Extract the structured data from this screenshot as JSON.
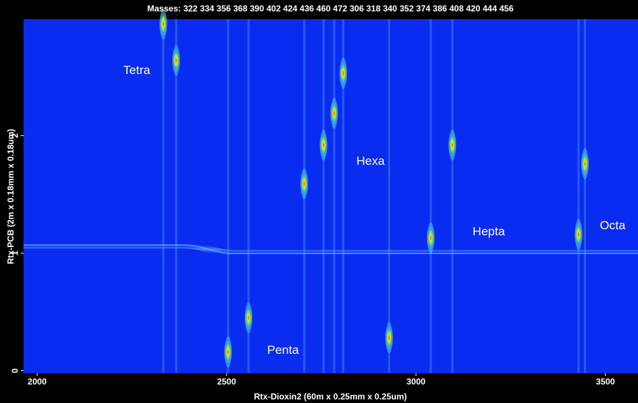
{
  "chart_data": {
    "type": "scatter",
    "title": "Masses:  322 334 356 368 390 402 424 436 460 472 306 318 340 352 374 386 408 420 444 456",
    "xlabel": "Rtx-Dioxin2 (60m x 0.25mm x 0.25um)",
    "ylabel": "Rtx-PCB (2m x 0.18mm x 0.18um)",
    "xlim": [
      1964,
      3586
    ],
    "ylim": [
      -0.02,
      2.99
    ],
    "xticks": [
      2000,
      2500,
      3000,
      3500
    ],
    "yticks": [
      0,
      1,
      2
    ],
    "background": "#0a2cf0",
    "series": [
      {
        "color": "#b8f03c",
        "x": [
          2333,
          2367,
          2504,
          2558,
          2705,
          2756,
          2784,
          2808,
          2929,
          3039,
          3096,
          3429,
          3446
        ],
        "values": [
          2.95,
          2.64,
          0.16,
          0.45,
          1.59,
          1.92,
          2.19,
          2.53,
          0.28,
          1.13,
          1.92,
          1.16,
          1.76
        ]
      }
    ],
    "annotations": [
      {
        "text": "Tetra",
        "x": 2263,
        "y": 2.55
      },
      {
        "text": "Penta",
        "x": 2649,
        "y": 0.17
      },
      {
        "text": "Hexa",
        "x": 2880,
        "y": 1.78
      },
      {
        "text": "Hepta",
        "x": 3192,
        "y": 1.18
      },
      {
        "text": "Octa",
        "x": 3519,
        "y": 1.23
      }
    ]
  }
}
